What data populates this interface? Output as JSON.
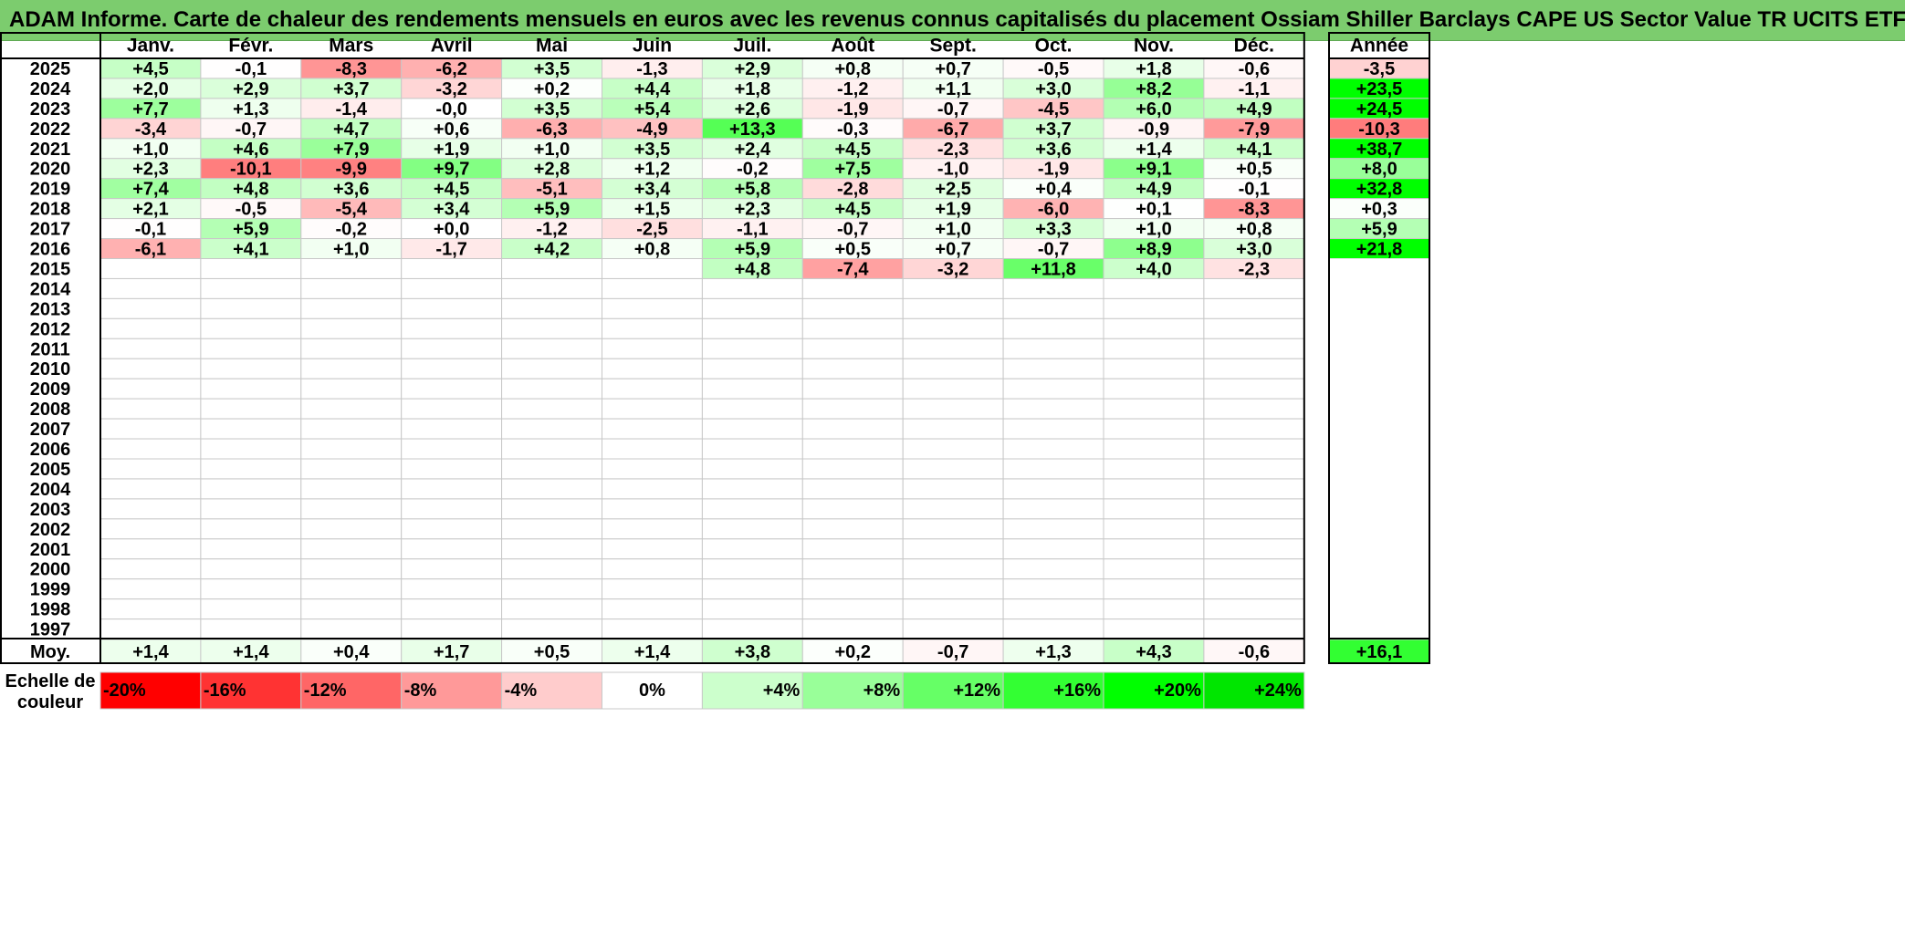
{
  "title": "ADAM Informe. Carte de chaleur des rendements mensuels en euros avec les revenus connus capitalisés du placement Ossiam Shiller Barclays CAPE US Sector Value TR UCITS ETF",
  "chart_data": {
    "type": "heatmap",
    "title": "ADAM Informe. Carte de chaleur des rendements mensuels en euros avec les revenus connus capitalisés du placement Ossiam Shiller Barclays CAPE US Sector Value TR UCITS ETF",
    "months": [
      "Janv.",
      "Févr.",
      "Mars",
      "Avril",
      "Mai",
      "Juin",
      "Juil.",
      "Août",
      "Sept.",
      "Oct.",
      "Nov.",
      "Déc."
    ],
    "year_header": "Année",
    "rows": [
      {
        "year": "2025",
        "values": [
          "+4,5",
          "-0,1",
          "-8,3",
          "-6,2",
          "+3,5",
          "-1,3",
          "+2,9",
          "+0,8",
          "+0,7",
          "-0,5",
          "+1,8",
          "-0,6"
        ],
        "annual": "-3,5"
      },
      {
        "year": "2024",
        "values": [
          "+2,0",
          "+2,9",
          "+3,7",
          "-3,2",
          "+0,2",
          "+4,4",
          "+1,8",
          "-1,2",
          "+1,1",
          "+3,0",
          "+8,2",
          "-1,1"
        ],
        "annual": "+23,5"
      },
      {
        "year": "2023",
        "values": [
          "+7,7",
          "+1,3",
          "-1,4",
          "-0,0",
          "+3,5",
          "+5,4",
          "+2,6",
          "-1,9",
          "-0,7",
          "-4,5",
          "+6,0",
          "+4,9"
        ],
        "annual": "+24,5"
      },
      {
        "year": "2022",
        "values": [
          "-3,4",
          "-0,7",
          "+4,7",
          "+0,6",
          "-6,3",
          "-4,9",
          "+13,3",
          "-0,3",
          "-6,7",
          "+3,7",
          "-0,9",
          "-7,9"
        ],
        "annual": "-10,3"
      },
      {
        "year": "2021",
        "values": [
          "+1,0",
          "+4,6",
          "+7,9",
          "+1,9",
          "+1,0",
          "+3,5",
          "+2,4",
          "+4,5",
          "-2,3",
          "+3,6",
          "+1,4",
          "+4,1"
        ],
        "annual": "+38,7"
      },
      {
        "year": "2020",
        "values": [
          "+2,3",
          "-10,1",
          "-9,9",
          "+9,7",
          "+2,8",
          "+1,2",
          "-0,2",
          "+7,5",
          "-1,0",
          "-1,9",
          "+9,1",
          "+0,5"
        ],
        "annual": "+8,0"
      },
      {
        "year": "2019",
        "values": [
          "+7,4",
          "+4,8",
          "+3,6",
          "+4,5",
          "-5,1",
          "+3,4",
          "+5,8",
          "-2,8",
          "+2,5",
          "+0,4",
          "+4,9",
          "-0,1"
        ],
        "annual": "+32,8"
      },
      {
        "year": "2018",
        "values": [
          "+2,1",
          "-0,5",
          "-5,4",
          "+3,4",
          "+5,9",
          "+1,5",
          "+2,3",
          "+4,5",
          "+1,9",
          "-6,0",
          "+0,1",
          "-8,3"
        ],
        "annual": "+0,3"
      },
      {
        "year": "2017",
        "values": [
          "-0,1",
          "+5,9",
          "-0,2",
          "+0,0",
          "-1,2",
          "-2,5",
          "-1,1",
          "-0,7",
          "+1,0",
          "+3,3",
          "+1,0",
          "+0,8"
        ],
        "annual": "+5,9"
      },
      {
        "year": "2016",
        "values": [
          "-6,1",
          "+4,1",
          "+1,0",
          "-1,7",
          "+4,2",
          "+0,8",
          "+5,9",
          "+0,5",
          "+0,7",
          "-0,7",
          "+8,9",
          "+3,0"
        ],
        "annual": "+21,8"
      },
      {
        "year": "2015",
        "values": [
          "",
          "",
          "",
          "",
          "",
          "",
          "+4,8",
          "-7,4",
          "-3,2",
          "+11,8",
          "+4,0",
          "-2,3"
        ],
        "annual": ""
      },
      {
        "year": "2014",
        "values": [
          "",
          "",
          "",
          "",
          "",
          "",
          "",
          "",
          "",
          "",
          "",
          ""
        ],
        "annual": ""
      },
      {
        "year": "2013",
        "values": [
          "",
          "",
          "",
          "",
          "",
          "",
          "",
          "",
          "",
          "",
          "",
          ""
        ],
        "annual": ""
      },
      {
        "year": "2012",
        "values": [
          "",
          "",
          "",
          "",
          "",
          "",
          "",
          "",
          "",
          "",
          "",
          ""
        ],
        "annual": ""
      },
      {
        "year": "2011",
        "values": [
          "",
          "",
          "",
          "",
          "",
          "",
          "",
          "",
          "",
          "",
          "",
          ""
        ],
        "annual": ""
      },
      {
        "year": "2010",
        "values": [
          "",
          "",
          "",
          "",
          "",
          "",
          "",
          "",
          "",
          "",
          "",
          ""
        ],
        "annual": ""
      },
      {
        "year": "2009",
        "values": [
          "",
          "",
          "",
          "",
          "",
          "",
          "",
          "",
          "",
          "",
          "",
          ""
        ],
        "annual": ""
      },
      {
        "year": "2008",
        "values": [
          "",
          "",
          "",
          "",
          "",
          "",
          "",
          "",
          "",
          "",
          "",
          ""
        ],
        "annual": ""
      },
      {
        "year": "2007",
        "values": [
          "",
          "",
          "",
          "",
          "",
          "",
          "",
          "",
          "",
          "",
          "",
          ""
        ],
        "annual": ""
      },
      {
        "year": "2006",
        "values": [
          "",
          "",
          "",
          "",
          "",
          "",
          "",
          "",
          "",
          "",
          "",
          ""
        ],
        "annual": ""
      },
      {
        "year": "2005",
        "values": [
          "",
          "",
          "",
          "",
          "",
          "",
          "",
          "",
          "",
          "",
          "",
          ""
        ],
        "annual": ""
      },
      {
        "year": "2004",
        "values": [
          "",
          "",
          "",
          "",
          "",
          "",
          "",
          "",
          "",
          "",
          "",
          ""
        ],
        "annual": ""
      },
      {
        "year": "2003",
        "values": [
          "",
          "",
          "",
          "",
          "",
          "",
          "",
          "",
          "",
          "",
          "",
          ""
        ],
        "annual": ""
      },
      {
        "year": "2002",
        "values": [
          "",
          "",
          "",
          "",
          "",
          "",
          "",
          "",
          "",
          "",
          "",
          ""
        ],
        "annual": ""
      },
      {
        "year": "2001",
        "values": [
          "",
          "",
          "",
          "",
          "",
          "",
          "",
          "",
          "",
          "",
          "",
          ""
        ],
        "annual": ""
      },
      {
        "year": "2000",
        "values": [
          "",
          "",
          "",
          "",
          "",
          "",
          "",
          "",
          "",
          "",
          "",
          ""
        ],
        "annual": ""
      },
      {
        "year": "1999",
        "values": [
          "",
          "",
          "",
          "",
          "",
          "",
          "",
          "",
          "",
          "",
          "",
          ""
        ],
        "annual": ""
      },
      {
        "year": "1998",
        "values": [
          "",
          "",
          "",
          "",
          "",
          "",
          "",
          "",
          "",
          "",
          "",
          ""
        ],
        "annual": ""
      },
      {
        "year": "1997",
        "values": [
          "",
          "",
          "",
          "",
          "",
          "",
          "",
          "",
          "",
          "",
          "",
          ""
        ],
        "annual": ""
      }
    ],
    "average": {
      "label": "Moy.",
      "values": [
        "+1,4",
        "+1,4",
        "+0,4",
        "+1,7",
        "+0,5",
        "+1,4",
        "+3,8",
        "+0,2",
        "-0,7",
        "+1,3",
        "+4,3",
        "-0,6"
      ],
      "annual": "+16,1"
    },
    "color_scale": {
      "label_line1": "Echelle de",
      "label_line2": "couleur",
      "steps": [
        {
          "label": "-20%",
          "value": -20,
          "color": "#ff0000"
        },
        {
          "label": "-16%",
          "value": -16,
          "color": "#ff3333"
        },
        {
          "label": "-12%",
          "value": -12,
          "color": "#ff6666"
        },
        {
          "label": "-8%",
          "value": -8,
          "color": "#ff9999"
        },
        {
          "label": "-4%",
          "value": -4,
          "color": "#ffcccc"
        },
        {
          "label": "0%",
          "value": 0,
          "color": "#ffffff"
        },
        {
          "label": "+4%",
          "value": 4,
          "color": "#ccffcc"
        },
        {
          "label": "+8%",
          "value": 8,
          "color": "#99ff99"
        },
        {
          "label": "+12%",
          "value": 12,
          "color": "#66ff66"
        },
        {
          "label": "+16%",
          "value": 16,
          "color": "#33ff33"
        },
        {
          "label": "+20%",
          "value": 20,
          "color": "#00ff00"
        },
        {
          "label": "+24%",
          "value": 24,
          "color": "#00e600"
        }
      ]
    }
  }
}
